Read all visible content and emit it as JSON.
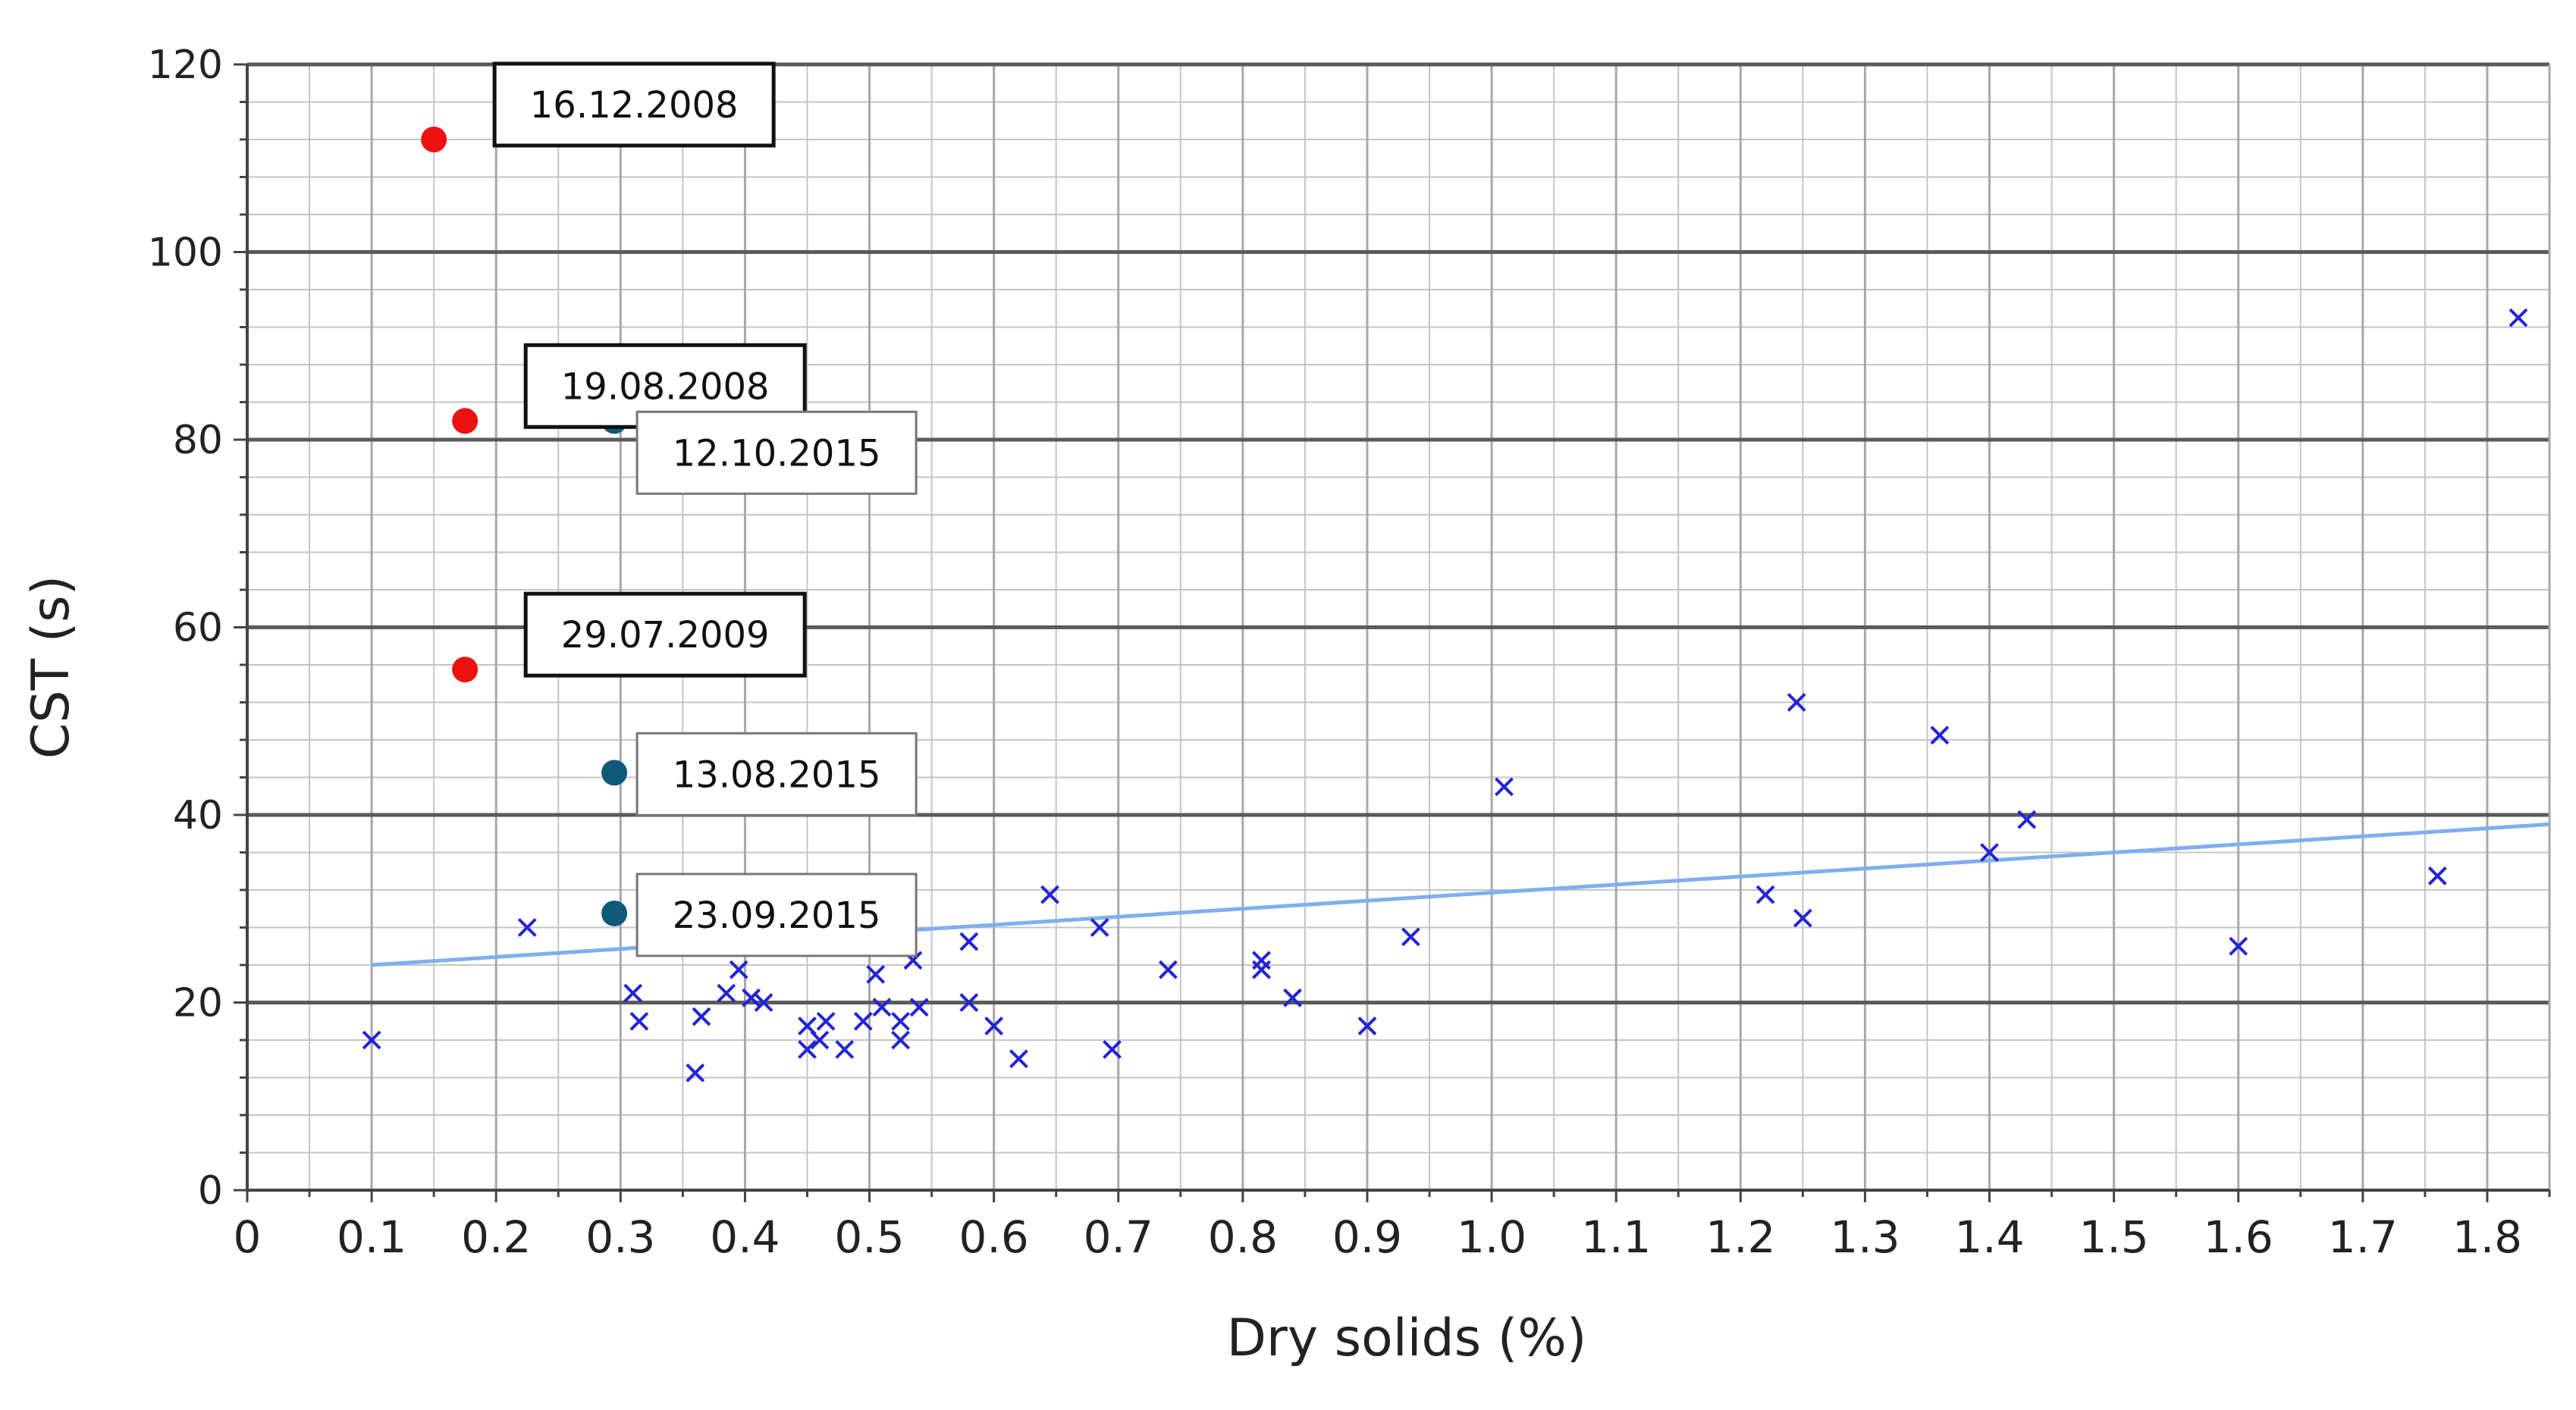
{
  "chart_data": {
    "type": "scatter",
    "title": "",
    "xlabel": "Dry solids (%)",
    "ylabel": "CST (s)",
    "xlim": [
      0,
      1.85
    ],
    "ylim": [
      0,
      120
    ],
    "x_major": 0.1,
    "x_minor": 0.05,
    "y_major": 20,
    "y_minor": 4,
    "xtick_labels": [
      "0",
      "0.1",
      "0.2",
      "0.3",
      "0.4",
      "0.5",
      "0.6",
      "0.7",
      "0.8",
      "0.9",
      "1.0",
      "1.1",
      "1.2",
      "1.3",
      "1.4",
      "1.5",
      "1.6",
      "1.7",
      "1.8"
    ],
    "ytick_labels": [
      "0",
      "20",
      "40",
      "60",
      "80",
      "100",
      "120"
    ],
    "grid": true,
    "colors": {
      "x_marker": "#2323d6",
      "trend": "#80aef0",
      "red_dot": "#ee1111",
      "teal_dot": "#0e5a78",
      "x_tick_label": "#e08a00",
      "grid_major": "#5a5a5a",
      "grid_minor": "#c4c4c4"
    },
    "series": [
      {
        "name": "samples",
        "marker": "x",
        "color": "#2323d6",
        "points": [
          [
            0.1,
            16
          ],
          [
            0.225,
            28
          ],
          [
            0.31,
            21
          ],
          [
            0.315,
            18
          ],
          [
            0.36,
            12.5
          ],
          [
            0.365,
            18.5
          ],
          [
            0.385,
            21
          ],
          [
            0.395,
            23.5
          ],
          [
            0.405,
            20.5
          ],
          [
            0.415,
            20
          ],
          [
            0.45,
            17.5
          ],
          [
            0.45,
            15
          ],
          [
            0.46,
            16
          ],
          [
            0.465,
            18
          ],
          [
            0.48,
            15
          ],
          [
            0.495,
            18
          ],
          [
            0.505,
            23
          ],
          [
            0.51,
            19.5
          ],
          [
            0.52,
            31.5
          ],
          [
            0.525,
            16
          ],
          [
            0.525,
            18
          ],
          [
            0.535,
            24.5
          ],
          [
            0.54,
            19.5
          ],
          [
            0.58,
            26.5
          ],
          [
            0.58,
            20
          ],
          [
            0.6,
            17.5
          ],
          [
            0.62,
            14
          ],
          [
            0.645,
            31.5
          ],
          [
            0.685,
            28
          ],
          [
            0.695,
            15
          ],
          [
            0.74,
            23.5
          ],
          [
            0.815,
            24.5
          ],
          [
            0.815,
            23.5
          ],
          [
            0.84,
            20.5
          ],
          [
            0.9,
            17.5
          ],
          [
            0.935,
            27
          ],
          [
            1.01,
            43
          ],
          [
            1.22,
            31.5
          ],
          [
            1.245,
            52
          ],
          [
            1.25,
            29
          ],
          [
            1.36,
            48.5
          ],
          [
            1.4,
            36
          ],
          [
            1.43,
            39.5
          ],
          [
            1.6,
            26
          ],
          [
            1.76,
            33.5
          ],
          [
            1.825,
            93
          ]
        ]
      },
      {
        "name": "labelled-2008-2009",
        "marker": "circle",
        "color": "#ee1111",
        "points": [
          [
            0.15,
            112
          ],
          [
            0.175,
            82
          ],
          [
            0.175,
            55.5
          ]
        ],
        "labels": [
          "16.12.2008",
          "19.08.2008",
          "29.07.2009"
        ]
      },
      {
        "name": "labelled-2015",
        "marker": "circle",
        "color": "#0e5a78",
        "points": [
          [
            0.295,
            82
          ],
          [
            0.295,
            44.5
          ],
          [
            0.295,
            29.5
          ]
        ],
        "labels": [
          "12.10.2015",
          "13.08.2015",
          "23.09.2015"
        ]
      }
    ],
    "trendline": {
      "type": "linear",
      "x": [
        0.1,
        1.85
      ],
      "y": [
        24,
        39
      ],
      "color": "#80aef0"
    },
    "annotations": [
      {
        "text": "16.12.2008",
        "series": 1,
        "point": 0,
        "box_style": "bold",
        "anchor": "upper-right"
      },
      {
        "text": "19.08.2008",
        "series": 1,
        "point": 1,
        "box_style": "bold",
        "anchor": "upper-right"
      },
      {
        "text": "29.07.2009",
        "series": 1,
        "point": 2,
        "box_style": "bold",
        "anchor": "upper-right"
      },
      {
        "text": "12.10.2015",
        "series": 2,
        "point": 0,
        "box_style": "light",
        "anchor": "lower-right"
      },
      {
        "text": "13.08.2015",
        "series": 2,
        "point": 1,
        "box_style": "light",
        "anchor": "right"
      },
      {
        "text": "23.09.2015",
        "series": 2,
        "point": 2,
        "box_style": "light",
        "anchor": "right"
      }
    ]
  }
}
